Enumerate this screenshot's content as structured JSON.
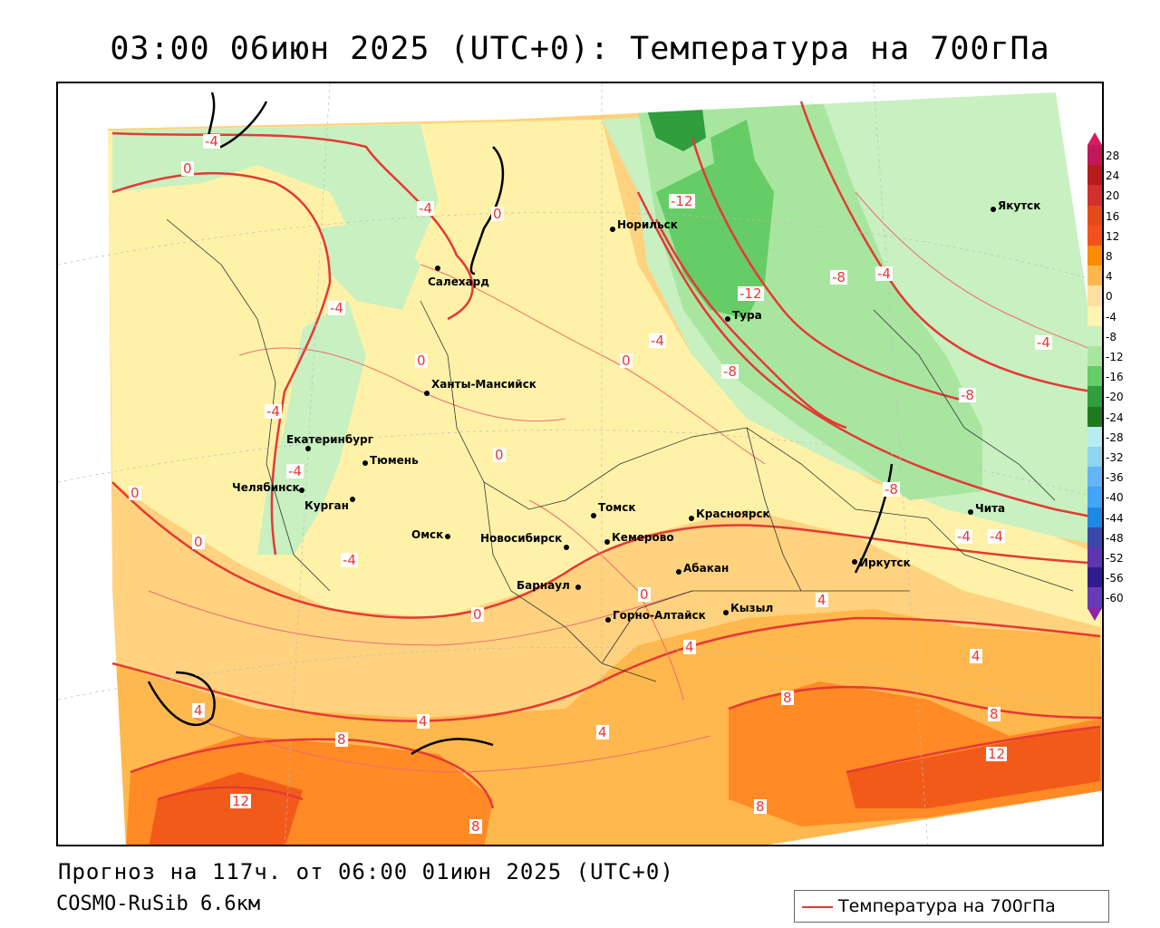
{
  "title": "03:00 06июн 2025 (UTC+0): Температура на 700гПа",
  "footer": {
    "forecast": "Прогноз на 117ч. от 06:00 01июн 2025 (UTC+0)",
    "model": "COSMO-RuSib 6.6км"
  },
  "legend": {
    "label": "Температура на 700гПа",
    "line_color": "#e53935"
  },
  "colorbar": {
    "labels": [
      "28",
      "24",
      "20",
      "16",
      "12",
      "8",
      "4",
      "0",
      "-4",
      "-8",
      "-12",
      "-16",
      "-20",
      "-24",
      "-28",
      "-32",
      "-36",
      "-40",
      "-44",
      "-48",
      "-52",
      "-56",
      "-60"
    ],
    "colors": [
      "#c2185b",
      "#b71c1c",
      "#d32f2f",
      "#e64a19",
      "#f4511e",
      "#fb8c00",
      "#ffb74d",
      "#ffe0a0",
      "#fff4b0",
      "#c8f0c0",
      "#a8e6a0",
      "#66cc66",
      "#2e9e3e",
      "#1f7a1f",
      "#b8ecf0",
      "#8fd4f0",
      "#64b5f6",
      "#42a5f5",
      "#1e88e5",
      "#3949ab",
      "#5e35b1",
      "#311b92",
      "#673ab7"
    ]
  },
  "cities": [
    {
      "name": "Якутск"
    },
    {
      "name": "Норильск"
    },
    {
      "name": "Салехард"
    },
    {
      "name": "Тура"
    },
    {
      "name": "Ханты-Мансийск"
    },
    {
      "name": "Екатеринбург"
    },
    {
      "name": "Тюмень"
    },
    {
      "name": "Челябинск"
    },
    {
      "name": "Курган"
    },
    {
      "name": "Омск"
    },
    {
      "name": "Новосибирск"
    },
    {
      "name": "Томск"
    },
    {
      "name": "Кемерово"
    },
    {
      "name": "Красноярск"
    },
    {
      "name": "Абакан"
    },
    {
      "name": "Барнаул"
    },
    {
      "name": "Горно-Алтайск"
    },
    {
      "name": "Кызыл"
    },
    {
      "name": "Иркутск"
    },
    {
      "name": "Чита"
    }
  ],
  "contour_labels": [
    "-4",
    "-4",
    "0",
    "-4",
    "-12",
    "-8",
    "-4",
    "-12",
    "-4",
    "-4",
    "-8",
    "-8",
    "-8",
    "-4",
    "-4",
    "-4",
    "-4",
    "-4",
    "-8",
    "-4",
    "-4",
    "0",
    "0",
    "0",
    "0",
    "0",
    "0",
    "0",
    "0",
    "4",
    "4",
    "4",
    "4",
    "4",
    "4",
    "8",
    "8",
    "8",
    "8",
    "12",
    "12",
    "8"
  ]
}
